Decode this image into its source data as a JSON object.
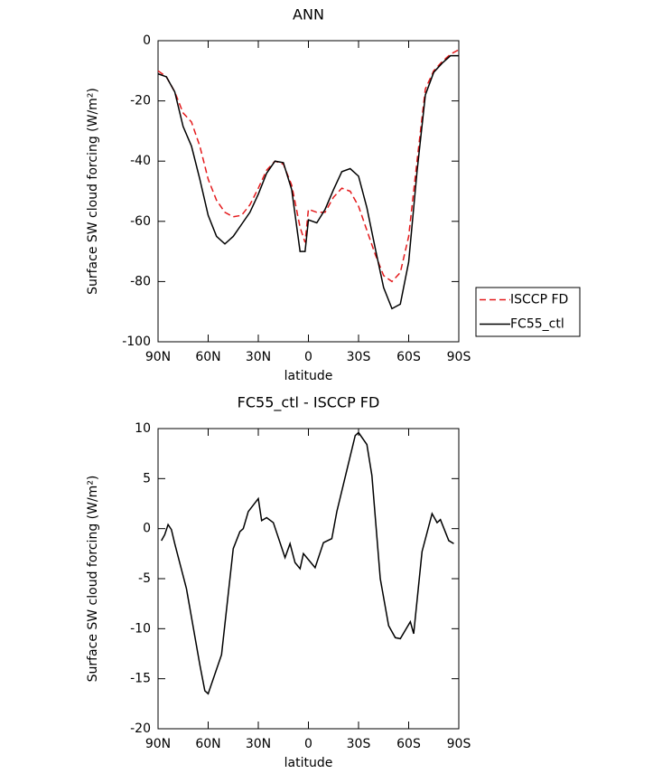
{
  "chart_data": [
    {
      "type": "line",
      "title": "ANN",
      "x_label": "latitude",
      "y_label": "Surface SW cloud forcing (W/m²)",
      "x": [
        90,
        85,
        80,
        75,
        70,
        65,
        60,
        55,
        50,
        45,
        40,
        35,
        30,
        25,
        20,
        15,
        10,
        5,
        2,
        0,
        -5,
        -10,
        -15,
        -20,
        -25,
        -30,
        -35,
        -40,
        -45,
        -50,
        -55,
        -60,
        -65,
        -70,
        -75,
        -80,
        -85,
        -90
      ],
      "series": [
        {
          "name": "ISCCP FD",
          "color": "#e41a1c",
          "dash": true,
          "values": [
            -10,
            -12,
            -17,
            -24,
            -27,
            -35,
            -46,
            -53,
            -57,
            -58.5,
            -58,
            -54.5,
            -49,
            -43,
            -40,
            -41,
            -48,
            -62,
            -67,
            -56,
            -57,
            -57,
            -52,
            -49,
            -50,
            -55,
            -63,
            -71,
            -78,
            -80,
            -77,
            -65,
            -40,
            -16,
            -10,
            -7,
            -4.5,
            -3
          ]
        },
        {
          "name": "FC55_ctl",
          "color": "#000000",
          "dash": false,
          "values": [
            -11,
            -12,
            -17,
            -28.5,
            -35,
            -46,
            -58,
            -65,
            -67.5,
            -65,
            -61,
            -57,
            -51,
            -44,
            -40,
            -40.5,
            -49.5,
            -70,
            -70,
            -59.5,
            -60.5,
            -56,
            -49.5,
            -43.5,
            -42.5,
            -45,
            -55.5,
            -69,
            -82,
            -89,
            -87.5,
            -73.5,
            -43.5,
            -18,
            -10.5,
            -7.5,
            -5,
            -5
          ]
        }
      ],
      "xlim": [
        90,
        -90
      ],
      "xticks": [
        {
          "value": 90,
          "label": "90N"
        },
        {
          "value": 60,
          "label": "60N"
        },
        {
          "value": 30,
          "label": "30N"
        },
        0,
        {
          "value": -30,
          "label": "30S"
        },
        {
          "value": -60,
          "label": "60S"
        },
        {
          "value": -90,
          "label": "90S"
        }
      ],
      "ylim": [
        -100,
        0
      ],
      "yticks": [
        0,
        -20,
        -40,
        -60,
        -80,
        -100
      ],
      "grid": false,
      "legend": "right"
    },
    {
      "type": "line",
      "title": "FC55_ctl - ISCCP FD",
      "x_label": "latitude",
      "y_label": "Surface SW cloud forcing (W/m²)",
      "x": [
        88,
        86,
        84,
        82,
        80,
        73,
        65,
        62,
        60,
        52,
        45,
        41,
        39,
        36,
        30,
        28,
        25,
        21,
        14,
        11,
        8,
        5,
        3,
        -4,
        -9,
        -14,
        -17,
        -28,
        -30,
        -35,
        -38,
        -43,
        -48,
        -52,
        -55,
        -61,
        -63,
        -68,
        -74,
        -77,
        -79,
        -84,
        -87
      ],
      "values": [
        -1.2,
        -0.6,
        0.4,
        -0.1,
        -1.5,
        -6,
        -13.6,
        -16.2,
        -16.5,
        -12.6,
        -2,
        -0.3,
        0,
        1.7,
        3,
        0.8,
        1.1,
        0.6,
        -2.9,
        -1.5,
        -3.4,
        -4,
        -2.5,
        -3.9,
        -1.4,
        -1,
        1.7,
        9.3,
        9.6,
        8.4,
        5.3,
        -5,
        -9.7,
        -10.9,
        -11,
        -9.3,
        -10.5,
        -2.3,
        1.5,
        0.6,
        0.9,
        -1.2,
        -1.5
      ],
      "color": "#000000",
      "xlim": [
        90,
        -90
      ],
      "xticks": [
        {
          "value": 90,
          "label": "90N"
        },
        {
          "value": 60,
          "label": "60N"
        },
        {
          "value": 30,
          "label": "30N"
        },
        0,
        {
          "value": -30,
          "label": "30S"
        },
        {
          "value": -60,
          "label": "60S"
        },
        {
          "value": -90,
          "label": "90S"
        }
      ],
      "ylim": [
        -20,
        10
      ],
      "yticks": [
        10,
        5,
        0,
        -5,
        -10,
        -15,
        -20
      ],
      "grid": false
    }
  ]
}
